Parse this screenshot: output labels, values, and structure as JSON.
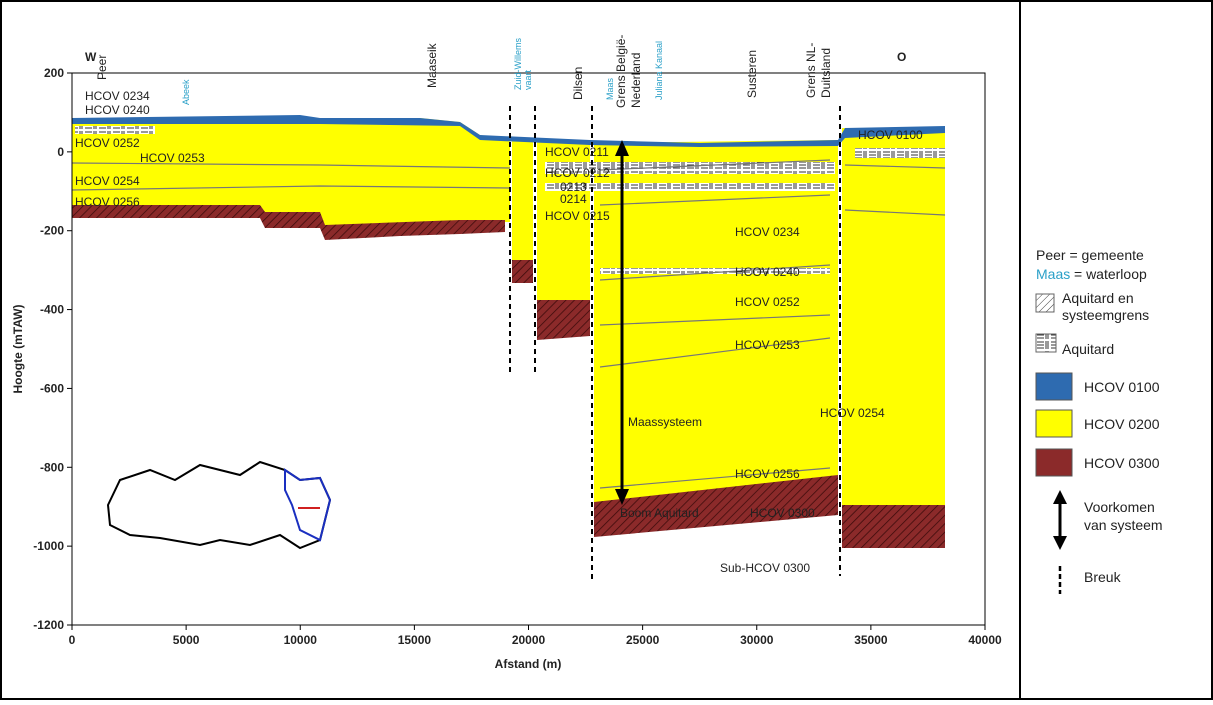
{
  "chart_data": {
    "type": "cross-section",
    "xlabel": "Afstand (m)",
    "ylabel": "Hoogte (mTAW)",
    "xlim": [
      0,
      40000
    ],
    "ylim": [
      -1200,
      200
    ],
    "xticks": [
      0,
      5000,
      10000,
      15000,
      20000,
      25000,
      30000,
      35000,
      40000
    ],
    "yticks": [
      -1200,
      -1000,
      -800,
      -600,
      -400,
      -200,
      0,
      200
    ],
    "directions": [
      "W",
      "O"
    ],
    "places": [
      [
        "Peer"
      ],
      [
        "Maaseik"
      ],
      [
        "Dilsen"
      ],
      [
        "Grens België-",
        "Nederland"
      ],
      [
        "Susteren"
      ],
      [
        "Grens NL-",
        "Duitsland"
      ]
    ],
    "waterways": [
      [
        "Abeek"
      ],
      [
        "Zuid-Willems",
        "vaart"
      ],
      [
        "Maas"
      ],
      [
        "Juliana Kanaal"
      ]
    ],
    "layer_labels": [
      "HCOV 0234",
      "HCOV 0240",
      "HCOV 0252",
      "HCOV 0253",
      "HCOV 0254",
      "HCOV 0256",
      "HCOV 0211",
      "HCOV 0212",
      "0213",
      "0214",
      "HCOV 0215",
      "HCOV 0234",
      "HCOV 0240",
      "HCOV 0252",
      "HCOV 0253",
      "HCOV 0254",
      "HCOV 0256",
      "Boom Aquitard",
      "HCOV 0300",
      "Sub-HCOV 0300",
      "HCOV 0100"
    ],
    "system_label": "Maassysteem",
    "legend": {
      "municipality": "Peer = gemeente",
      "river_name": "Maas",
      "river_text": "= waterloop",
      "items": [
        [
          "Aquitard en",
          "systeemgrens"
        ],
        [
          "Aquitard"
        ],
        [
          "HCOV 0100"
        ],
        [
          "HCOV 0200"
        ],
        [
          "HCOV 0300"
        ],
        [
          "Voorkomen",
          "van systeem"
        ],
        [
          "Breuk"
        ]
      ]
    }
  }
}
